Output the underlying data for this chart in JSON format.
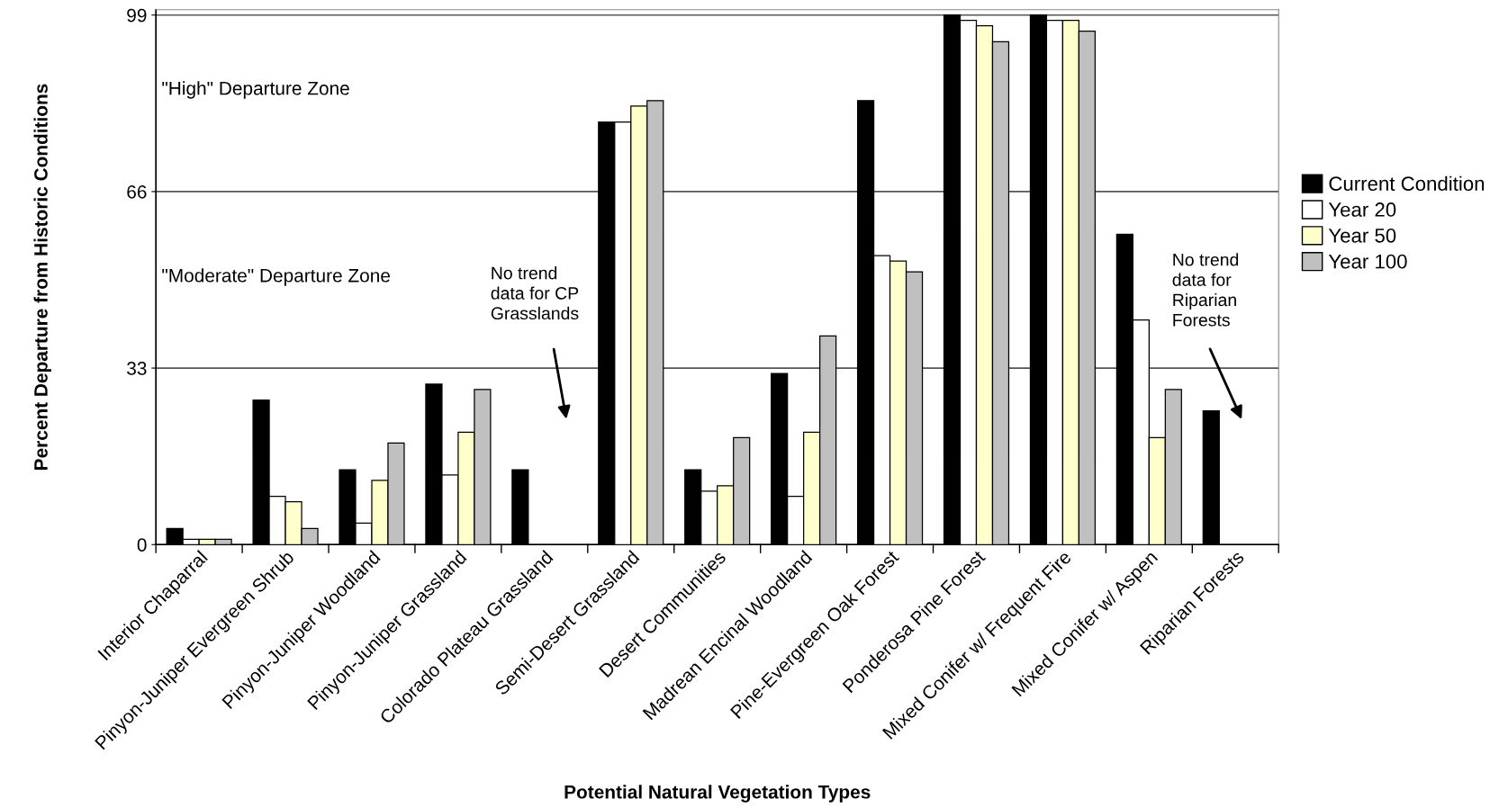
{
  "chart_data": {
    "type": "bar",
    "xlabel": "Potential Natural Vegetation Types",
    "ylabel": "Percent Departure from Historic Conditions",
    "categories": [
      "Interior Chaparral",
      "Pinyon-Juniper Evergreen Shrub",
      "Pinyon-Juniper Woodland",
      "Pinyon-Juniper Grassland",
      "Colorado Plateau Grassland",
      "Semi-Desert Grassland",
      "Desert Communities",
      "Madrean Encinal Woodland",
      "Pine-Evergreen Oak Forest",
      "Ponderosa Pine Forest",
      "Mixed Conifer w/ Frequent Fire",
      "Mixed Conifer w/ Aspen",
      "Riparian Forests"
    ],
    "series": [
      {
        "name": "Current Condition",
        "color": "#000000",
        "values": [
          3,
          27,
          14,
          30,
          14,
          79,
          14,
          32,
          83,
          99,
          99,
          58,
          25
        ]
      },
      {
        "name": "Year 20",
        "color": "#ffffff",
        "values": [
          1,
          9,
          4,
          13,
          null,
          79,
          10,
          9,
          54,
          98,
          98,
          42,
          null
        ]
      },
      {
        "name": "Year 50",
        "color": "#ffffcc",
        "values": [
          1,
          8,
          12,
          21,
          null,
          82,
          11,
          21,
          53,
          97,
          98,
          20,
          null
        ]
      },
      {
        "name": "Year 100",
        "color": "#c0c0c0",
        "values": [
          1,
          3,
          19,
          29,
          null,
          83,
          20,
          39,
          51,
          94,
          96,
          29,
          null
        ]
      }
    ],
    "ylim": [
      0,
      100
    ],
    "yticks": [
      0,
      33,
      66,
      99
    ],
    "grid": "y",
    "legend": "right",
    "annotations": [
      "\"High\" Departure Zone",
      "\"Moderate\" Departure Zone",
      "No trend\ndata for CP\nGrasslands",
      "No trend\ndata for\nRiparian\nForests"
    ]
  }
}
